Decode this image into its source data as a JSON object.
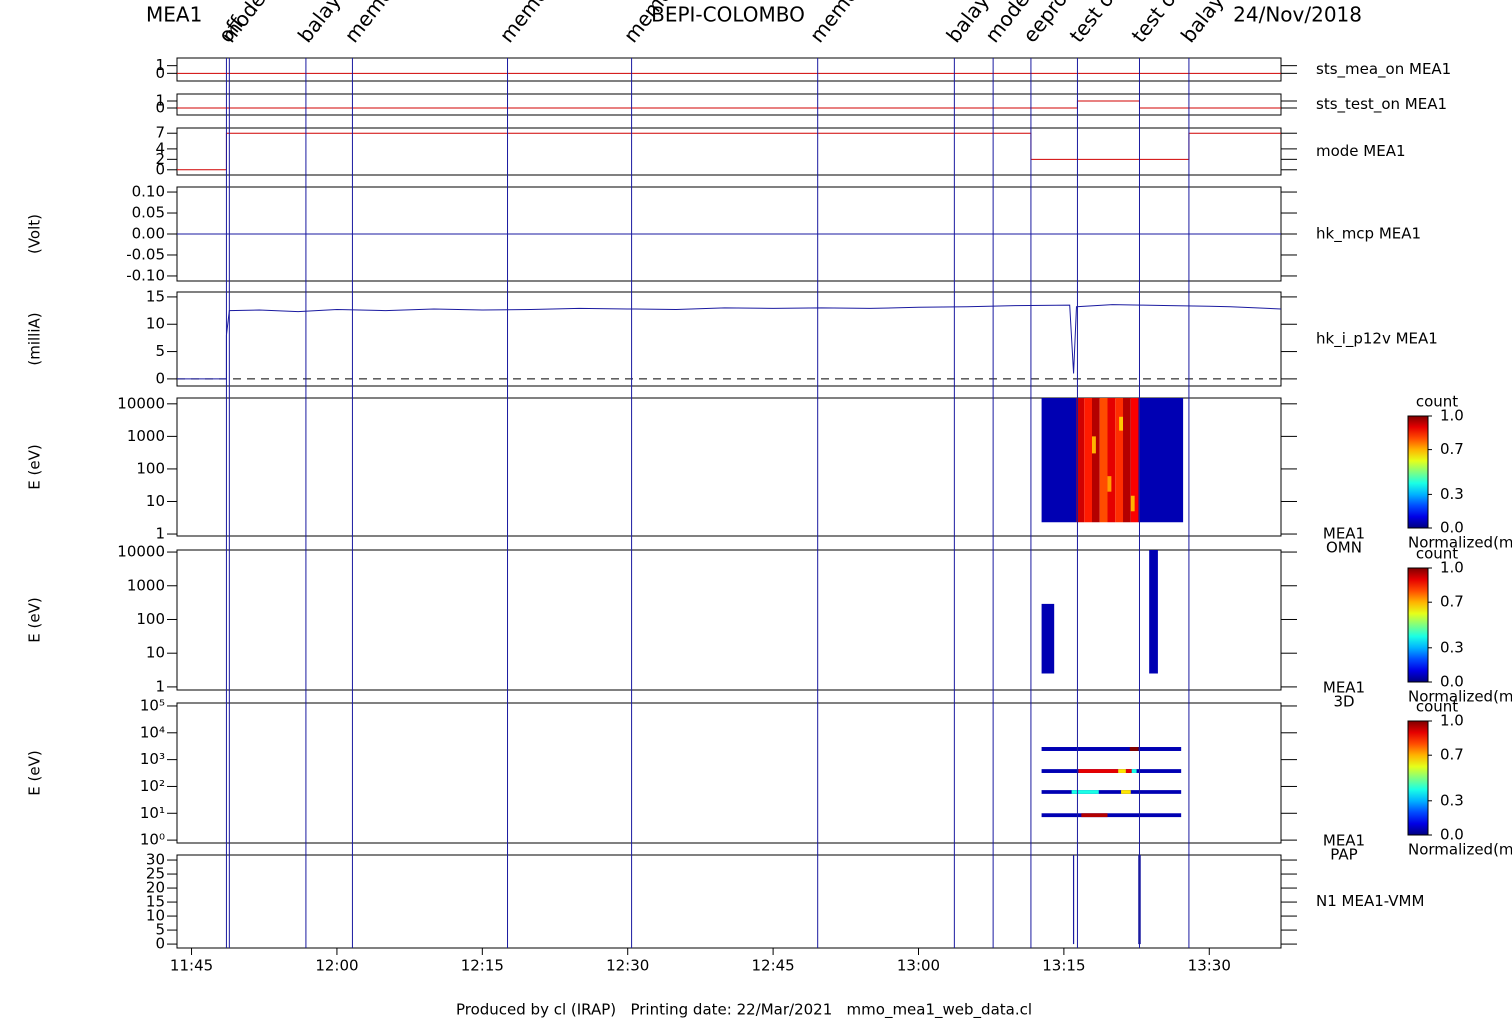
{
  "header": {
    "left": "MEA1",
    "center": "BEPI-COLOMBO",
    "right": "24/Nov/2018"
  },
  "footer": "Produced by cl (IRAP)   Printing date: 22/Mar/2021   mmo_mea1_web_data.cl",
  "time_axis": {
    "xlim": [
      703.5,
      817.4
    ],
    "xticks": [
      {
        "value": 705,
        "label": "11:45"
      },
      {
        "value": 720,
        "label": "12:00"
      },
      {
        "value": 735,
        "label": "12:15"
      },
      {
        "value": 750,
        "label": "12:30"
      },
      {
        "value": 765,
        "label": "12:45"
      },
      {
        "value": 780,
        "label": "13:00"
      },
      {
        "value": 795,
        "label": "13:15"
      },
      {
        "value": 810,
        "label": "13:30"
      }
    ]
  },
  "events": {
    "color": "#1a1aa0",
    "x": [
      708.6,
      708.9,
      716.8,
      721.6,
      737.6,
      750.4,
      769.6,
      783.7,
      787.7,
      791.6,
      796.4,
      802.8,
      807.9
    ],
    "labels": [
      "off",
      "mode",
      "balayag",
      "memory",
      "memory",
      "memory",
      "memory",
      "balayag",
      "mode",
      "eeprom",
      "test on",
      "test off",
      "balayag"
    ]
  },
  "chart_data": [
    {
      "type": "line",
      "label": "sts_mea_on MEA1",
      "label_color": "#d00000",
      "ylim": [
        -1,
        2
      ],
      "yticks": [
        0,
        1
      ],
      "series": [
        {
          "color": "#d00000",
          "x": [
            703.5,
            817.4
          ],
          "values": [
            0,
            0
          ]
        }
      ]
    },
    {
      "type": "line",
      "label": "sts_test_on MEA1",
      "label_color": "#d00000",
      "ylim": [
        -1,
        2
      ],
      "yticks": [
        0,
        1
      ],
      "series": [
        {
          "color": "#d00000",
          "x": [
            703.5,
            796.4,
            796.4,
            802.8,
            802.8,
            817.4
          ],
          "values": [
            0,
            0,
            1,
            1,
            0,
            0
          ]
        }
      ]
    },
    {
      "type": "line",
      "label": "mode MEA1",
      "label_color": "#d00000",
      "ylim": [
        -1,
        8
      ],
      "yticks": [
        0,
        2,
        4,
        7
      ],
      "series": [
        {
          "color": "#d00000",
          "x": [
            703.5,
            708.6,
            708.6,
            791.6,
            791.6,
            807.9,
            807.9,
            817.4
          ],
          "values": [
            0,
            0,
            7,
            7,
            2,
            2,
            7,
            7
          ]
        }
      ]
    },
    {
      "type": "line",
      "label": "hk_mcp MEA1",
      "label_color": "#1a1aa0",
      "ylabel": "(Volt)",
      "ylim": [
        -0.112,
        0.112
      ],
      "yticks": [
        {
          "value": -0.1,
          "label": "-0.10"
        },
        {
          "value": -0.05,
          "label": "-0.05"
        },
        {
          "value": 0,
          "label": "0.00"
        },
        {
          "value": 0.05,
          "label": "0.05"
        },
        {
          "value": 0.1,
          "label": "0.10"
        }
      ],
      "series": [
        {
          "color": "#1a1aa0",
          "x": [
            703.5,
            817.4
          ],
          "values": [
            0,
            0
          ]
        }
      ]
    },
    {
      "type": "line",
      "label": "hk_i_p12v MEA1",
      "label_color": "#1a1aa0",
      "ylabel": "(milliA)",
      "ylim": [
        -1.3,
        15.9
      ],
      "yticks": [
        0,
        5,
        10,
        15
      ],
      "ref_line": 0,
      "series": [
        {
          "color": "#1a1aa0",
          "x": [
            703.5,
            708.6,
            708.6,
            708.9,
            712,
            716,
            720,
            725,
            730,
            735,
            740,
            745,
            750,
            755,
            760,
            765,
            770,
            775,
            780,
            785,
            790,
            795.6,
            796.0,
            796.3,
            800,
            803,
            806,
            810,
            812.2,
            817.4
          ],
          "values": [
            0,
            0,
            8,
            12.5,
            12.6,
            12.3,
            12.7,
            12.5,
            12.8,
            12.6,
            12.7,
            12.9,
            12.8,
            12.7,
            13,
            12.9,
            13,
            12.9,
            13.1,
            13.2,
            13.4,
            13.5,
            1,
            13.2,
            13.6,
            13.5,
            13.4,
            13.3,
            13.2,
            12.8
          ]
        }
      ]
    },
    {
      "type": "spectrogram",
      "log": true,
      "ylabel": "E (eV)",
      "label": "MEA1",
      "sublabel": "OMN",
      "ylim": [
        0.87,
        15100
      ],
      "yticks": [
        1,
        10,
        100,
        1000,
        10000
      ],
      "cells": [
        {
          "x": [
            792.7,
            796.3
          ],
          "e": [
            2.3,
            15100
          ],
          "value": 0.05
        },
        {
          "x": [
            802.7,
            807.3
          ],
          "e": [
            2.3,
            15100
          ],
          "value": 0.05
        },
        {
          "x": [
            796.3,
            797.1
          ],
          "e": [
            2.3,
            15100
          ],
          "value": 0.92
        },
        {
          "x": [
            797.1,
            797.9
          ],
          "e": [
            2.3,
            15100
          ],
          "value": 0.85
        },
        {
          "x": [
            797.9,
            798.7
          ],
          "e": [
            2.3,
            15100
          ],
          "value": 0.95
        },
        {
          "x": [
            798.7,
            799.5
          ],
          "e": [
            2.3,
            15100
          ],
          "value": 0.8
        },
        {
          "x": [
            799.5,
            800.3
          ],
          "e": [
            2.3,
            15100
          ],
          "value": 0.9
        },
        {
          "x": [
            800.3,
            801.1
          ],
          "e": [
            2.3,
            15100
          ],
          "value": 0.83
        },
        {
          "x": [
            801.1,
            801.9
          ],
          "e": [
            2.3,
            15100
          ],
          "value": 0.95
        },
        {
          "x": [
            801.9,
            802.7
          ],
          "e": [
            2.3,
            15100
          ],
          "value": 0.88
        },
        {
          "x": [
            797.9,
            798.3
          ],
          "e": [
            300,
            1000
          ],
          "value": 0.7
        },
        {
          "x": [
            799.5,
            799.9
          ],
          "e": [
            20,
            60
          ],
          "value": 0.72
        },
        {
          "x": [
            800.7,
            801.1
          ],
          "e": [
            1500,
            4000
          ],
          "value": 0.68
        },
        {
          "x": [
            801.9,
            802.3
          ],
          "e": [
            5,
            15
          ],
          "value": 0.7
        }
      ],
      "colorbar": {
        "title": "count",
        "ticks": [
          {
            "value": 1,
            "label": "1.0"
          },
          {
            "value": 0.7,
            "label": "0.7"
          },
          {
            "value": 0.3,
            "label": "0.3"
          },
          {
            "value": 0,
            "label": "0.0"
          }
        ],
        "label": "Normalized(m"
      }
    },
    {
      "type": "spectrogram",
      "log": true,
      "ylabel": "E (eV)",
      "label": "MEA1",
      "sublabel": "3D",
      "ylim": [
        0.81,
        11500
      ],
      "yticks": [
        1,
        10,
        100,
        1000,
        10000
      ],
      "cells": [
        {
          "x": [
            792.7,
            794.0
          ],
          "e": [
            2.5,
            290
          ],
          "value": 0.05
        },
        {
          "x": [
            803.8,
            804.7
          ],
          "e": [
            2.5,
            11500
          ],
          "value": 0.05
        }
      ],
      "colorbar": {
        "title": "count",
        "ticks": [
          {
            "value": 1,
            "label": "1.0"
          },
          {
            "value": 0.7,
            "label": "0.7"
          },
          {
            "value": 0.3,
            "label": "0.3"
          },
          {
            "value": 0,
            "label": "0.0"
          }
        ],
        "label": "Normalized(m"
      }
    },
    {
      "type": "spectrogram",
      "log": true,
      "ylabel": "E (eV)",
      "label": "MEA1",
      "sublabel": "PAP",
      "ylim": [
        0.78,
        129000
      ],
      "yticks": [
        {
          "value": 1,
          "label": "10⁰"
        },
        {
          "value": 10,
          "label": "10¹"
        },
        {
          "value": 100,
          "label": "10²"
        },
        {
          "value": 1000,
          "label": "10³"
        },
        {
          "value": 10000,
          "label": "10⁴"
        },
        {
          "value": 100000,
          "label": "10⁵"
        }
      ],
      "cells": [
        {
          "x": [
            792.7,
            807.1
          ],
          "e": [
            2100,
            2950
          ],
          "value": 0.05
        },
        {
          "x": [
            801.8,
            802.7
          ],
          "e": [
            2100,
            2950
          ],
          "value": 1.0
        },
        {
          "x": [
            792.7,
            807.1
          ],
          "e": [
            318,
            442
          ],
          "value": 0.05
        },
        {
          "x": [
            796.5,
            800.6
          ],
          "e": [
            318,
            442
          ],
          "value": 0.9
        },
        {
          "x": [
            800.6,
            801.4
          ],
          "e": [
            318,
            442
          ],
          "value": 0.65
        },
        {
          "x": [
            801.4,
            802.0
          ],
          "e": [
            318,
            442
          ],
          "value": 0.9
        },
        {
          "x": [
            802.0,
            802.5
          ],
          "e": [
            318,
            442
          ],
          "value": 0.4
        },
        {
          "x": [
            792.7,
            807.1
          ],
          "e": [
            53,
            73
          ],
          "value": 0.05
        },
        {
          "x": [
            795.8,
            798.6
          ],
          "e": [
            53,
            73
          ],
          "value": 0.4
        },
        {
          "x": [
            800.9,
            801.9
          ],
          "e": [
            53,
            73
          ],
          "value": 0.65
        },
        {
          "x": [
            792.7,
            807.1
          ],
          "e": [
            7.2,
            10
          ],
          "value": 0.05
        },
        {
          "x": [
            796.8,
            799.5
          ],
          "e": [
            7.2,
            10
          ],
          "value": 0.95
        }
      ],
      "colorbar": {
        "title": "count",
        "ticks": [
          {
            "value": 1,
            "label": "1.0"
          },
          {
            "value": 0.7,
            "label": "0.7"
          },
          {
            "value": 0.3,
            "label": "0.3"
          },
          {
            "value": 0,
            "label": "0.0"
          }
        ],
        "label": "Normalized(m"
      }
    },
    {
      "type": "spike",
      "label": "N1 MEA1-VMM",
      "label_color": "#1a1aa0",
      "color": "#1a1aa0",
      "ylim": [
        -1.4,
        31.8
      ],
      "yticks": [
        0,
        5,
        10,
        15,
        20,
        25,
        30
      ],
      "x": [
        796.0,
        802.8
      ],
      "values": [
        31.8,
        31.8
      ]
    }
  ]
}
